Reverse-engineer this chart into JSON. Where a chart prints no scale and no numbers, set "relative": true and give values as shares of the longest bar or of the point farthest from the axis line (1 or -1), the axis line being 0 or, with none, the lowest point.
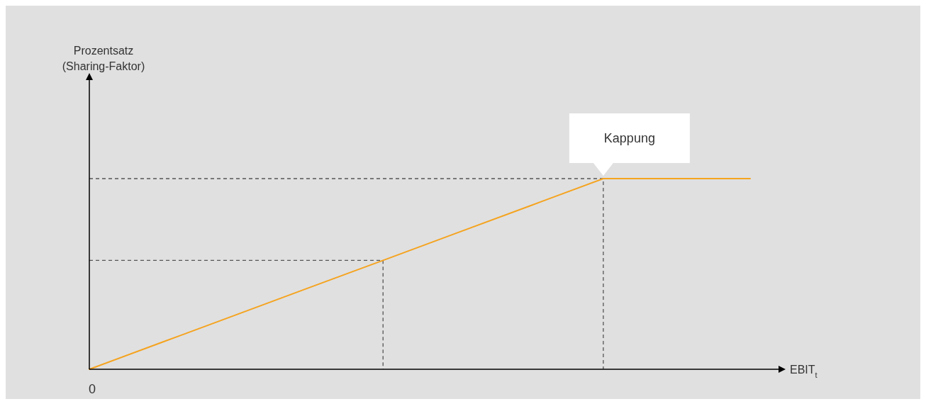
{
  "chart_data": {
    "type": "line",
    "relative": true,
    "xlabel": "EBIT$_{t}$",
    "annotations": [
      "Kappung",
      "0",
      "Prozentsatz\n(Sharing-Faktor)"
    ],
    "categories": [
      null,
      null,
      null,
      null,
      null,
      null,
      null,
      null,
      null,
      null
    ],
    "series": [
      {
        "color": "#f5a31e",
        "values": [
          0,
          0.143,
          0.286,
          0.429,
          0.571,
          0.714,
          0.857,
          1,
          1,
          1
        ]
      }
    ],
    "ref_lines": [
      {
        "axis": "y",
        "value": 0.571,
        "color": "#555555",
        "line_style": "dashed"
      },
      {
        "axis": "y",
        "value": 1,
        "color": "#555555",
        "line_style": "dashed"
      }
    ]
  }
}
